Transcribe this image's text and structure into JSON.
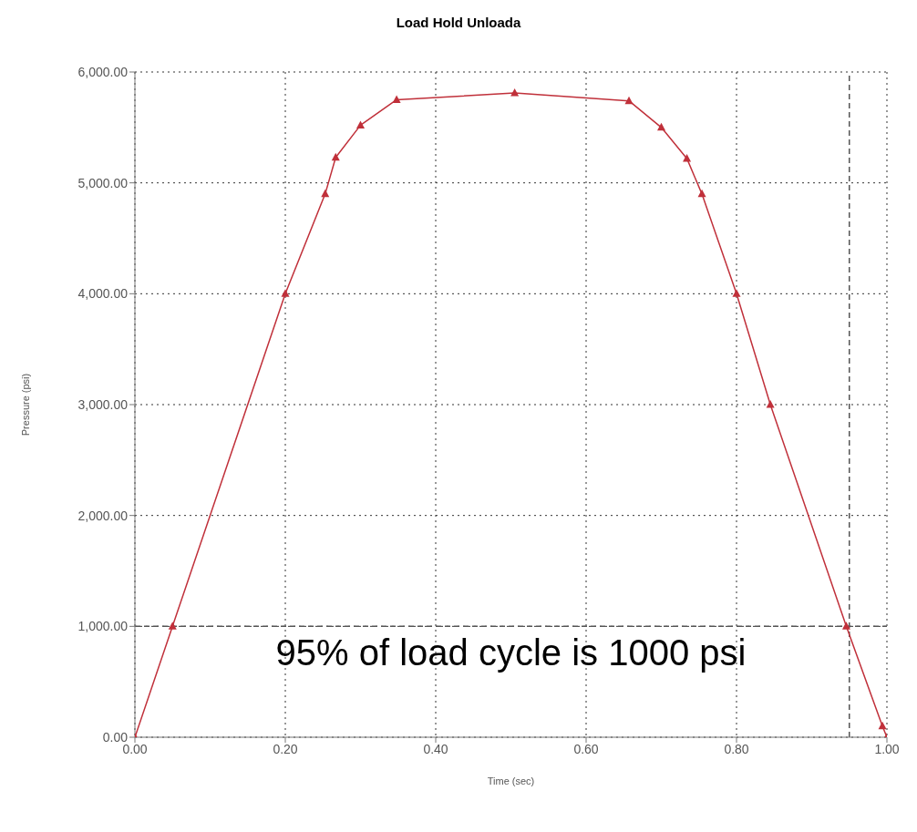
{
  "chart_data": {
    "type": "line",
    "title": "Load Hold Unloada",
    "xlabel": "Time (sec)",
    "ylabel": "Pressure (psi)",
    "x": [
      0,
      0.05,
      0.2,
      0.253,
      0.267,
      0.3,
      0.348,
      0.505,
      0.657,
      0.7,
      0.734,
      0.754,
      0.8,
      0.845,
      0.946,
      0.994,
      1.0
    ],
    "series": [
      {
        "color": "#c0303a",
        "values": [
          0,
          1000,
          4000,
          4900,
          5230,
          5520,
          5750,
          5810,
          5740,
          5500,
          5220,
          4900,
          4000,
          3000,
          1000,
          100,
          0
        ]
      }
    ],
    "xlim": [
      0,
      1
    ],
    "ylim": [
      0,
      6000
    ],
    "xticks": [
      {
        "value": 0,
        "label": "0.00"
      },
      {
        "value": 0.2,
        "label": "0.20"
      },
      {
        "value": 0.4,
        "label": "0.40"
      },
      {
        "value": 0.6,
        "label": "0.60"
      },
      {
        "value": 0.8,
        "label": "0.80"
      },
      {
        "value": 1,
        "label": "1.00"
      }
    ],
    "yticks": [
      {
        "value": 0,
        "label": "0.00"
      },
      {
        "value": 1000,
        "label": "1,000.00"
      },
      {
        "value": 2000,
        "label": "2,000.00"
      },
      {
        "value": 3000,
        "label": "3,000.00"
      },
      {
        "value": 4000,
        "label": "4,000.00"
      },
      {
        "value": 5000,
        "label": "5,000.00"
      },
      {
        "value": 6000,
        "label": "6,000.00"
      }
    ],
    "grid": true,
    "marker": "triangle",
    "line_style": "solid",
    "ref_lines": [
      {
        "axis": "y",
        "value": 1000,
        "color": "#555555",
        "line_style": "dashed"
      },
      {
        "axis": "x",
        "value": 0.95,
        "color": "#555555",
        "line_style": "dashed"
      }
    ],
    "annotations": [
      "95% of load cycle is 1000 psi"
    ]
  }
}
